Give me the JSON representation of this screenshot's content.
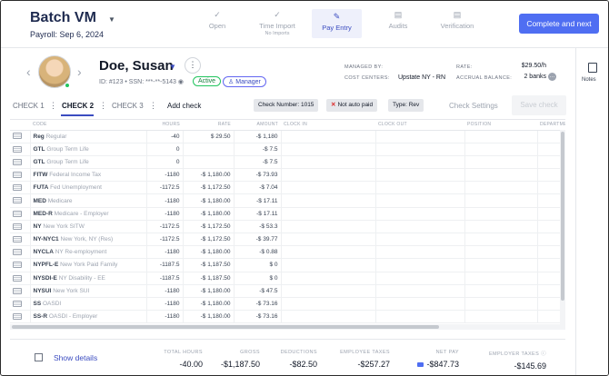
{
  "header": {
    "title": "Batch VM",
    "subtitle": "Payroll: Sep 6, 2024",
    "steps": [
      {
        "label": "Open",
        "sub": ""
      },
      {
        "label": "Time Import",
        "sub": "No Imports"
      },
      {
        "label": "Pay Entry",
        "sub": ""
      },
      {
        "label": "Audits",
        "sub": ""
      },
      {
        "label": "Verification",
        "sub": ""
      }
    ],
    "primary_button": "Complete and next"
  },
  "rail": {
    "notes_label": "Notes"
  },
  "employee": {
    "name": "Doe, Susan",
    "meta": "ID: #123 • SSN: ***-**-5143",
    "status_badge": "Active",
    "role_badge": "Manager",
    "managed_by_label": "MANAGED BY:",
    "managed_by_value": "",
    "cost_centers_label": "COST CENTERS:",
    "cost_centers_value": "Upstate NY - RN",
    "rate_label": "RATE:",
    "rate_value": "$29.50/h",
    "accrual_label": "ACCRUAL BALANCE:",
    "accrual_value": "2 banks"
  },
  "tabs": {
    "items": [
      "CHECK 1",
      "CHECK 2",
      "CHECK 3"
    ],
    "add_check": "Add check",
    "pill_check_number": "Check Number: 1015",
    "pill_auto_paid": "Not auto paid",
    "pill_type": "Type: Rev",
    "check_settings": "Check Settings",
    "save_check": "Save check"
  },
  "table": {
    "headers": [
      "CODE",
      "HOURS",
      "RATE",
      "AMOUNT",
      "CLOCK IN",
      "CLOCK OUT",
      "POSITION",
      "DEPARTMENT"
    ],
    "rows": [
      {
        "code": "Reg",
        "desc": "Regular",
        "hours": "-40",
        "rate": "$ 29.50",
        "amount": "-$ 1,180"
      },
      {
        "code": "GTL",
        "desc": "Group Term Life",
        "hours": "0",
        "rate": "",
        "amount": "-$ 7.5"
      },
      {
        "code": "GTL",
        "desc": "Group Term Life",
        "hours": "0",
        "rate": "",
        "amount": "-$ 7.5"
      },
      {
        "code": "FITW",
        "desc": "Federal Income Tax",
        "hours": "-1180",
        "rate": "-$ 1,180.00",
        "amount": "-$ 73.93"
      },
      {
        "code": "FUTA",
        "desc": "Fed Unemployment",
        "hours": "-1172.5",
        "rate": "-$ 1,172.50",
        "amount": "-$ 7.04"
      },
      {
        "code": "MED",
        "desc": "Medicare",
        "hours": "-1180",
        "rate": "-$ 1,180.00",
        "amount": "-$ 17.11"
      },
      {
        "code": "MED-R",
        "desc": "Medicare - Employer",
        "hours": "-1180",
        "rate": "-$ 1,180.00",
        "amount": "-$ 17.11"
      },
      {
        "code": "NY",
        "desc": "New York SITW",
        "hours": "-1172.5",
        "rate": "-$ 1,172.50",
        "amount": "-$ 53.3"
      },
      {
        "code": "NY-NYC1",
        "desc": "New York, NY (Res)",
        "hours": "-1172.5",
        "rate": "-$ 1,172.50",
        "amount": "-$ 39.77"
      },
      {
        "code": "NYCLA",
        "desc": "NY Re-employment",
        "hours": "-1180",
        "rate": "-$ 1,180.00",
        "amount": "-$ 0.88"
      },
      {
        "code": "NYPFL-E",
        "desc": "New York Paid Family",
        "hours": "-1187.5",
        "rate": "-$ 1,187.50",
        "amount": "$ 0"
      },
      {
        "code": "NYSDI-E",
        "desc": "NY Disability - EE",
        "hours": "-1187.5",
        "rate": "-$ 1,187.50",
        "amount": "$ 0"
      },
      {
        "code": "NYSUI",
        "desc": "New York SUI",
        "hours": "-1180",
        "rate": "-$ 1,180.00",
        "amount": "-$ 47.5"
      },
      {
        "code": "SS",
        "desc": "OASDI",
        "hours": "-1180",
        "rate": "-$ 1,180.00",
        "amount": "-$ 73.16"
      },
      {
        "code": "SS-R",
        "desc": "OASDI - Employer",
        "hours": "-1180",
        "rate": "-$ 1,180.00",
        "amount": "-$ 73.16"
      }
    ]
  },
  "footer": {
    "show_details": "Show details",
    "totals": [
      {
        "label": "TOTAL HOURS",
        "value": "-40.00"
      },
      {
        "label": "GROSS",
        "value": "-$1,187.50"
      },
      {
        "label": "DEDUCTIONS",
        "value": "-$82.50"
      },
      {
        "label": "EMPLOYEE TAXES",
        "value": "-$257.27"
      },
      {
        "label": "NET PAY",
        "value": "-$847.73"
      },
      {
        "label": "EMPLOYER TAXES",
        "value": "-$145.69"
      }
    ]
  },
  "colors": {
    "accent": "#4f6ef2",
    "active_green": "#22c55e",
    "brand_dark": "#1e2a4f"
  }
}
